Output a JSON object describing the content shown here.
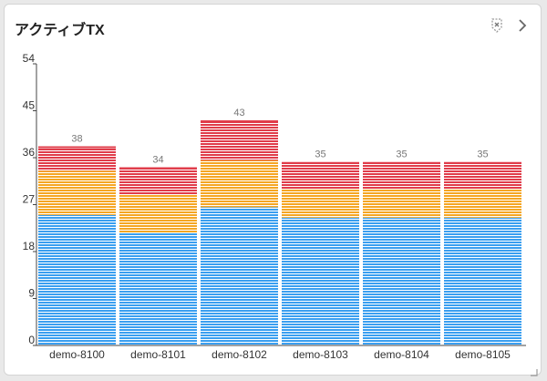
{
  "widget": {
    "title": "アクティブTX",
    "icons": {
      "clear": "x-shield-icon",
      "expand": "chevron-right-icon",
      "resize": "resize-corner-icon"
    }
  },
  "chart_data": {
    "type": "bar",
    "stacked": true,
    "categories": [
      "demo-8100",
      "demo-8101",
      "demo-8102",
      "demo-8103",
      "demo-8104",
      "demo-8105"
    ],
    "series": [
      {
        "color": "#3a9ff0",
        "values": [
          25,
          21.5,
          26.5,
          24.5,
          24.5,
          24.5
        ]
      },
      {
        "color": "#f5a623",
        "values": [
          8.5,
          7.5,
          9,
          5.5,
          5.5,
          5.5
        ]
      },
      {
        "color": "#e03c4a",
        "values": [
          4.5,
          5,
          7.5,
          5,
          5,
          5
        ]
      }
    ],
    "totals": [
      38,
      34,
      43,
      35,
      35,
      35
    ],
    "yticks": [
      0,
      9,
      18,
      27,
      36,
      45,
      54
    ],
    "ylim": [
      0,
      54
    ],
    "grid": false
  }
}
